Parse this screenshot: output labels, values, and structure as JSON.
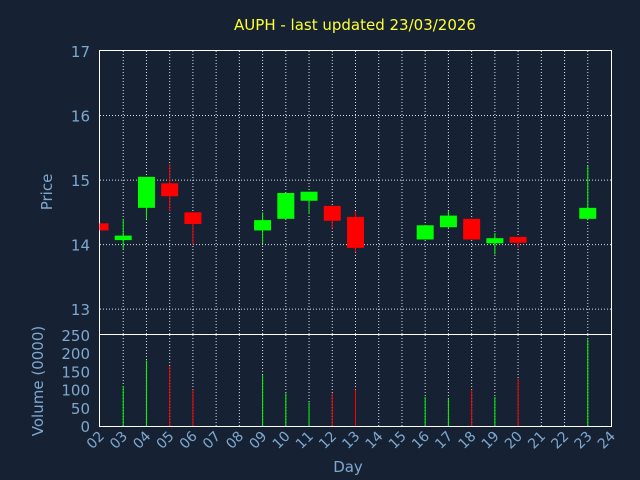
{
  "chart_data": [
    {
      "type": "candlestick",
      "title": "AUPH - last updated 23/03/2026",
      "ylabel": "Price",
      "ylim": [
        12.6,
        17
      ],
      "yticks": [
        13,
        14,
        15,
        16,
        17
      ],
      "grid": true,
      "colors": {
        "up": "#00ff00",
        "down": "#ff0000"
      },
      "categories": [
        "02",
        "03",
        "04",
        "05",
        "06",
        "07",
        "08",
        "09",
        "10",
        "11",
        "12",
        "13",
        "14",
        "15",
        "16",
        "17",
        "18",
        "19",
        "20",
        "21",
        "22",
        "23",
        "24"
      ],
      "candles": [
        {
          "day": "02",
          "open": 14.33,
          "close": 14.22,
          "high": 14.33,
          "low": 14.22
        },
        {
          "day": "03",
          "open": 14.07,
          "close": 14.14,
          "high": 14.4,
          "low": 13.93
        },
        {
          "day": "04",
          "open": 14.57,
          "close": 15.05,
          "high": 15.05,
          "low": 14.4
        },
        {
          "day": "05",
          "open": 14.95,
          "close": 14.75,
          "high": 15.25,
          "low": 14.52
        },
        {
          "day": "06",
          "open": 14.5,
          "close": 14.32,
          "high": 14.5,
          "low": 14.0
        },
        {
          "day": "09",
          "open": 14.22,
          "close": 14.38,
          "high": 14.5,
          "low": 14.02
        },
        {
          "day": "10",
          "open": 14.4,
          "close": 14.8,
          "high": 14.8,
          "low": 14.4
        },
        {
          "day": "11",
          "open": 14.68,
          "close": 14.82,
          "high": 14.82,
          "low": 14.48
        },
        {
          "day": "12",
          "open": 14.6,
          "close": 14.37,
          "high": 14.6,
          "low": 14.25
        },
        {
          "day": "13",
          "open": 14.43,
          "close": 13.95,
          "high": 14.52,
          "low": 13.88
        },
        {
          "day": "16",
          "open": 14.08,
          "close": 14.3,
          "high": 14.3,
          "low": 14.08
        },
        {
          "day": "17",
          "open": 14.27,
          "close": 14.45,
          "high": 14.52,
          "low": 14.25
        },
        {
          "day": "18",
          "open": 14.4,
          "close": 14.08,
          "high": 14.4,
          "low": 14.08
        },
        {
          "day": "19",
          "open": 14.02,
          "close": 14.1,
          "high": 14.18,
          "low": 13.85
        },
        {
          "day": "20",
          "open": 14.12,
          "close": 14.03,
          "high": 14.12,
          "low": 13.95
        },
        {
          "day": "23",
          "open": 14.4,
          "close": 14.57,
          "high": 15.22,
          "low": 14.4
        }
      ]
    },
    {
      "type": "bar",
      "ylabel": "Volume (0000)",
      "xlabel": "Day",
      "ylim": [
        0,
        250
      ],
      "yticks": [
        0,
        50,
        100,
        150,
        200,
        250
      ],
      "categories": [
        "02",
        "03",
        "04",
        "05",
        "06",
        "07",
        "08",
        "09",
        "10",
        "11",
        "12",
        "13",
        "14",
        "15",
        "16",
        "17",
        "18",
        "19",
        "20",
        "21",
        "22",
        "23",
        "24"
      ],
      "bars": [
        {
          "day": "02",
          "value": 0,
          "color": "#ff0000"
        },
        {
          "day": "03",
          "value": 110,
          "color": "#00ff00"
        },
        {
          "day": "04",
          "value": 180,
          "color": "#00ff00"
        },
        {
          "day": "05",
          "value": 165,
          "color": "#ff0000"
        },
        {
          "day": "06",
          "value": 100,
          "color": "#ff0000"
        },
        {
          "day": "09",
          "value": 140,
          "color": "#00ff00"
        },
        {
          "day": "10",
          "value": 90,
          "color": "#00ff00"
        },
        {
          "day": "11",
          "value": 65,
          "color": "#00ff00"
        },
        {
          "day": "12",
          "value": 90,
          "color": "#ff0000"
        },
        {
          "day": "13",
          "value": 100,
          "color": "#ff0000"
        },
        {
          "day": "16",
          "value": 80,
          "color": "#00ff00"
        },
        {
          "day": "17",
          "value": 75,
          "color": "#00ff00"
        },
        {
          "day": "18",
          "value": 100,
          "color": "#ff0000"
        },
        {
          "day": "19",
          "value": 80,
          "color": "#00ff00"
        },
        {
          "day": "20",
          "value": 130,
          "color": "#ff0000"
        },
        {
          "day": "23",
          "value": 238,
          "color": "#00ff00"
        }
      ]
    }
  ]
}
